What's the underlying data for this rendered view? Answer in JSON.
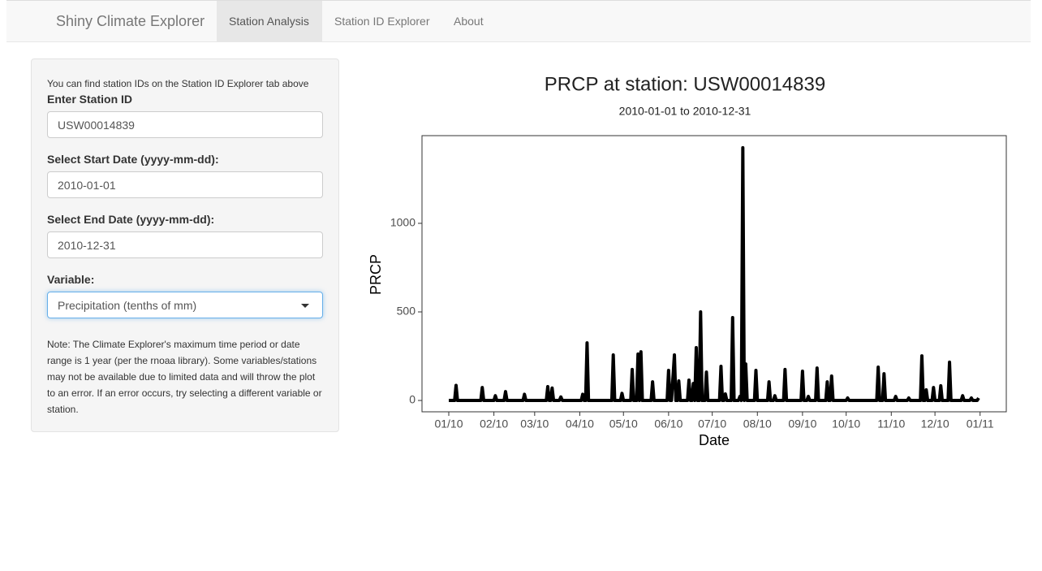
{
  "navbar": {
    "brand": "Shiny Climate Explorer",
    "tabs": [
      "Station Analysis",
      "Station ID Explorer",
      "About"
    ]
  },
  "sidebar": {
    "help_text": "You can find station IDs on the Station ID Explorer tab above",
    "fields": [
      {
        "label": "Enter Station ID",
        "value": "USW00014839"
      },
      {
        "label": "Select Start Date (yyyy-mm-dd):",
        "value": "2010-01-01"
      },
      {
        "label": "Select End Date (yyyy-mm-dd):",
        "value": "2010-12-31"
      },
      {
        "label": "Variable:",
        "value": "Precipitation (tenths of mm)"
      }
    ],
    "note": "Note: The Climate Explorer's maximum time period or date range is 1 year (per the rnoaa library). Some variables/stations may not be available due to limited data and will throw the plot to an error. If an error occurs, try selecting a different variable or station."
  },
  "chart_data": {
    "type": "line",
    "title": "PRCP at station: USW00014839",
    "subtitle": "2010-01-01 to 2010-12-31",
    "x_label": "Date",
    "y_label": "PRCP",
    "x": [
      0,
      4,
      5,
      6,
      22,
      23,
      24,
      31,
      32,
      33,
      38,
      39,
      40,
      51,
      52,
      53,
      67,
      68,
      69,
      70,
      71,
      72,
      76,
      77,
      78,
      91,
      92,
      93,
      94,
      95,
      96,
      112,
      113,
      114,
      118,
      119,
      120,
      125,
      126,
      127,
      129,
      130,
      131,
      132,
      133,
      139,
      140,
      141,
      150,
      151,
      152,
      153,
      155,
      156,
      157,
      158,
      159,
      164,
      165,
      166,
      167,
      168,
      169,
      170,
      171,
      172,
      173,
      174,
      176,
      177,
      178,
      186,
      187,
      188,
      189,
      190,
      191,
      194,
      195,
      196,
      199,
      200,
      201,
      202,
      203,
      204,
      205,
      210,
      211,
      212,
      219,
      220,
      221,
      223,
      224,
      225,
      230,
      231,
      232,
      242,
      243,
      244,
      246,
      247,
      248,
      252,
      253,
      254,
      259,
      260,
      261,
      262,
      263,
      264,
      273,
      274,
      275,
      294,
      295,
      296,
      298,
      299,
      300,
      306,
      307,
      308,
      315,
      316,
      317,
      324,
      325,
      326,
      327,
      328,
      329,
      332,
      333,
      334,
      337,
      338,
      339,
      343,
      344,
      345,
      352,
      353,
      354,
      358,
      359,
      360,
      363,
      364
    ],
    "series": [
      {
        "name": "PRCP",
        "color": "#000000",
        "values": [
          0,
          0,
          85,
          0,
          0,
          73,
          0,
          0,
          27,
          0,
          0,
          50,
          0,
          0,
          35,
          0,
          0,
          78,
          0,
          0,
          70,
          0,
          0,
          20,
          0,
          0,
          35,
          0,
          0,
          325,
          0,
          0,
          257,
          0,
          0,
          40,
          0,
          0,
          175,
          0,
          0,
          262,
          0,
          275,
          0,
          0,
          105,
          0,
          0,
          170,
          0,
          0,
          257,
          0,
          0,
          110,
          0,
          0,
          115,
          0,
          0,
          96,
          0,
          298,
          0,
          0,
          500,
          0,
          0,
          160,
          0,
          0,
          193,
          0,
          0,
          37,
          0,
          0,
          468,
          0,
          0,
          23,
          0,
          1427,
          0,
          206,
          0,
          0,
          170,
          0,
          0,
          105,
          0,
          0,
          27,
          0,
          0,
          175,
          0,
          0,
          165,
          0,
          0,
          23,
          0,
          0,
          183,
          0,
          0,
          105,
          0,
          0,
          138,
          0,
          0,
          14,
          0,
          0,
          188,
          0,
          0,
          151,
          0,
          0,
          23,
          0,
          0,
          14,
          0,
          0,
          252,
          0,
          0,
          60,
          0,
          0,
          73,
          0,
          0,
          83,
          0,
          0,
          216,
          0,
          0,
          27,
          0,
          0,
          14,
          0,
          0,
          14
        ]
      }
    ],
    "xlim": [
      -18.4,
      383
    ],
    "xticks": [
      {
        "value": 0,
        "label": "01/10"
      },
      {
        "value": 31,
        "label": "02/10"
      },
      {
        "value": 59,
        "label": "03/10"
      },
      {
        "value": 90,
        "label": "04/10"
      },
      {
        "value": 120,
        "label": "05/10"
      },
      {
        "value": 151,
        "label": "06/10"
      },
      {
        "value": 181,
        "label": "07/10"
      },
      {
        "value": 212,
        "label": "08/10"
      },
      {
        "value": 243,
        "label": "09/10"
      },
      {
        "value": 273,
        "label": "10/10"
      },
      {
        "value": 304,
        "label": "11/10"
      },
      {
        "value": 334,
        "label": "12/10"
      },
      {
        "value": 365,
        "label": "01/11"
      }
    ],
    "ylim": [
      -64,
      1495
    ],
    "yticks": [
      0,
      500,
      1000
    ]
  }
}
